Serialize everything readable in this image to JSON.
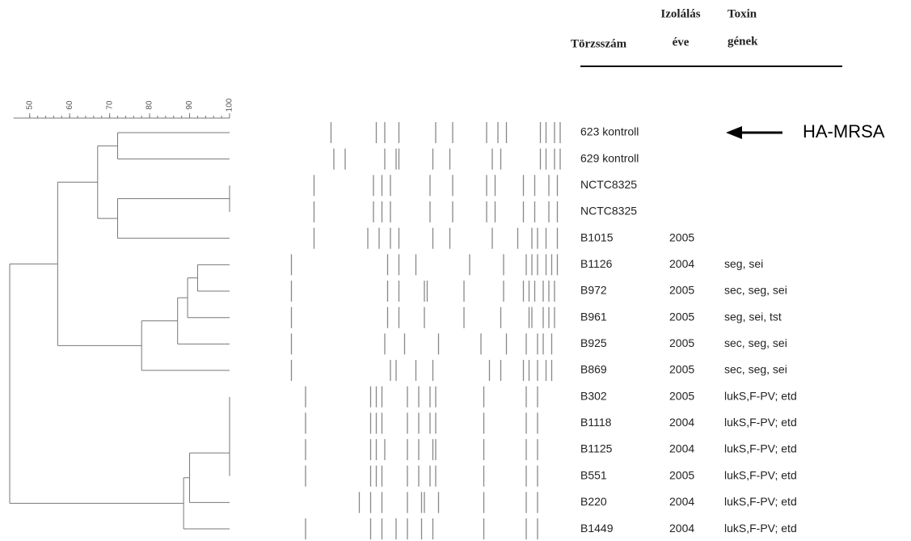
{
  "header": {
    "strain": "Törzsszám",
    "year_1": "Izolálás",
    "year_2": "éve",
    "toxin_1": "Toxin",
    "toxin_2": "gének"
  },
  "annotation": "HA-MRSA",
  "dendrogram": {
    "range": [
      45,
      100
    ],
    "ticks": [
      50,
      60,
      70,
      80,
      90,
      100
    ],
    "merges": [
      [
        0,
        1,
        72
      ],
      [
        2,
        3,
        100
      ],
      [
        17,
        4,
        72
      ],
      [
        16,
        18,
        67
      ],
      [
        5,
        6,
        92
      ],
      [
        20,
        7,
        89.5
      ],
      [
        21,
        8,
        87
      ],
      [
        22,
        9,
        78
      ],
      [
        19,
        23,
        57
      ],
      [
        10,
        11,
        100
      ],
      [
        25,
        12,
        100
      ],
      [
        26,
        13,
        100
      ],
      [
        27,
        14,
        90
      ],
      [
        28,
        15,
        88.5
      ],
      [
        24,
        29,
        45
      ]
    ]
  },
  "rows": [
    {
      "name": "623 kontroll",
      "bands": [
        17,
        33,
        36,
        41,
        54,
        60,
        72,
        76,
        79,
        91,
        93,
        96,
        98
      ]
    },
    {
      "name": "629 kontroll",
      "bands": [
        18,
        22,
        36,
        40,
        41,
        53,
        59,
        74,
        77,
        91,
        93,
        96,
        98
      ]
    },
    {
      "name": "NCTC8325",
      "bands": [
        11,
        32,
        35,
        38,
        52,
        60,
        72,
        75,
        85,
        89,
        94,
        97
      ]
    },
    {
      "name": "NCTC8325",
      "bands": [
        11,
        32,
        35,
        38,
        52,
        60,
        72,
        75,
        85,
        89,
        94,
        97
      ]
    },
    {
      "name": "B1015",
      "year": "2005",
      "bands": [
        11,
        30,
        34,
        38,
        41,
        53,
        59,
        74,
        83,
        88,
        90,
        93,
        97
      ]
    },
    {
      "name": "B1126",
      "year": "2004",
      "toxins": "seg, sei",
      "bands": [
        3,
        37,
        41,
        47,
        66,
        78,
        86,
        88,
        90,
        93,
        95,
        97
      ]
    },
    {
      "name": "B972",
      "year": "2005",
      "toxins": "sec, seg, sei",
      "bands": [
        3,
        37,
        41,
        50,
        51,
        64,
        78,
        85,
        87,
        89,
        92,
        94,
        96
      ]
    },
    {
      "name": "B961",
      "year": "2005",
      "toxins": "seg, sei, tst",
      "bands": [
        3,
        37,
        41,
        50,
        64,
        77,
        87,
        88,
        92,
        94,
        96
      ]
    },
    {
      "name": "B925",
      "year": "2005",
      "toxins": "sec, seg, sei",
      "bands": [
        3,
        36,
        43,
        55,
        70,
        79,
        86,
        90,
        92,
        95
      ]
    },
    {
      "name": "B869",
      "year": "2005",
      "toxins": "sec, seg, sei",
      "bands": [
        3,
        38,
        40,
        47,
        53,
        73,
        77,
        85,
        87,
        90,
        93,
        95
      ]
    },
    {
      "name": "B302",
      "year": "2005",
      "toxins": "lukS,F-PV; etd",
      "bands": [
        8,
        31,
        33,
        35,
        44,
        48,
        52,
        54,
        71,
        86,
        90
      ]
    },
    {
      "name": "B1118",
      "year": "2004",
      "toxins": "lukS,F-PV; etd",
      "bands": [
        8,
        31,
        33,
        35,
        44,
        48,
        52,
        54,
        71,
        86,
        90
      ]
    },
    {
      "name": "B1125",
      "year": "2004",
      "toxins": "lukS,F-PV; etd",
      "bands": [
        8,
        31,
        33,
        36,
        44,
        48,
        53,
        54,
        71,
        86,
        90
      ]
    },
    {
      "name": "B551",
      "year": "2005",
      "toxins": "lukS,F-PV; etd",
      "bands": [
        8,
        31,
        33,
        35,
        44,
        48,
        52,
        54,
        71,
        86,
        90
      ]
    },
    {
      "name": "B220",
      "year": "2004",
      "toxins": "lukS,F-PV; etd",
      "bands": [
        27,
        31,
        35,
        44,
        49,
        50,
        55,
        71,
        86,
        90
      ]
    },
    {
      "name": "B1449",
      "year": "2004",
      "toxins": "lukS,F-PV; etd",
      "bands": [
        8,
        31,
        35,
        40,
        44,
        49,
        53,
        71,
        86,
        90
      ]
    }
  ]
}
